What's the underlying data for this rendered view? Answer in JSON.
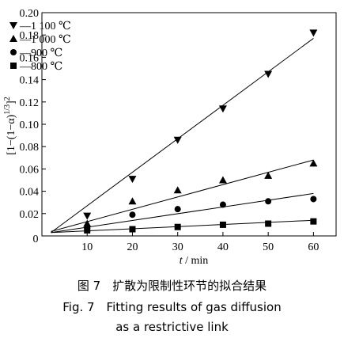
{
  "chart_data": {
    "type": "scatter",
    "xlabel_italic": "t",
    "xlabel_unit": " / min",
    "ylabel": "[1−(1−α)",
    "ylabel_sup": "1/3",
    "ylabel_end": "]",
    "ylabel_sup2": "2",
    "xlim": [
      0,
      65
    ],
    "ylim": [
      0,
      0.2
    ],
    "x_ticks": [
      10,
      20,
      30,
      40,
      50,
      60
    ],
    "x_tick_labels": [
      "10",
      "20",
      "30",
      "40",
      "50",
      "60"
    ],
    "y_ticks": [
      0,
      0.02,
      0.04,
      0.06,
      0.08,
      0.1,
      0.12,
      0.14,
      0.16,
      0.18,
      0.2
    ],
    "y_tick_labels": [
      "0",
      "0.02",
      "0.04",
      "0.06",
      "0.08",
      "0.10",
      "0.12",
      "0.14",
      "0.16",
      "0.18",
      "0.20"
    ],
    "origin_label": "0",
    "series": [
      {
        "name": "—1 100 ℃",
        "marker": "triangle-down",
        "x": [
          10,
          20,
          30,
          40,
          50,
          60
        ],
        "y": [
          0.018,
          0.051,
          0.086,
          0.114,
          0.145,
          0.182
        ],
        "fit": [
          [
            2,
            0.003
          ],
          [
            60,
            0.177
          ]
        ]
      },
      {
        "name": "—1 000 ℃",
        "marker": "triangle-up",
        "x": [
          10,
          20,
          30,
          40,
          50,
          60
        ],
        "y": [
          0.011,
          0.031,
          0.041,
          0.05,
          0.054,
          0.065
        ],
        "fit": [
          [
            2,
            0.004
          ],
          [
            60,
            0.068
          ]
        ]
      },
      {
        "name": "—900 ℃",
        "marker": "circle",
        "x": [
          10,
          20,
          30,
          40,
          50,
          60
        ],
        "y": [
          0.007,
          0.019,
          0.024,
          0.028,
          0.031,
          0.033
        ],
        "fit": [
          [
            2,
            0.003
          ],
          [
            60,
            0.038
          ]
        ]
      },
      {
        "name": "—800 ℃",
        "marker": "square",
        "x": [
          10,
          20,
          30,
          40,
          50,
          60
        ],
        "y": [
          0.005,
          0.006,
          0.008,
          0.01,
          0.011,
          0.013
        ],
        "fit": [
          [
            2,
            0.003
          ],
          [
            60,
            0.014
          ]
        ]
      }
    ],
    "legend_position": "top-left",
    "grid": false
  },
  "caption": {
    "cn": "图 7　扩散为限制性环节的拟合结果",
    "en_line1": "Fig. 7　Fitting results of gas diffusion",
    "en_line2": "as a restrictive link"
  }
}
